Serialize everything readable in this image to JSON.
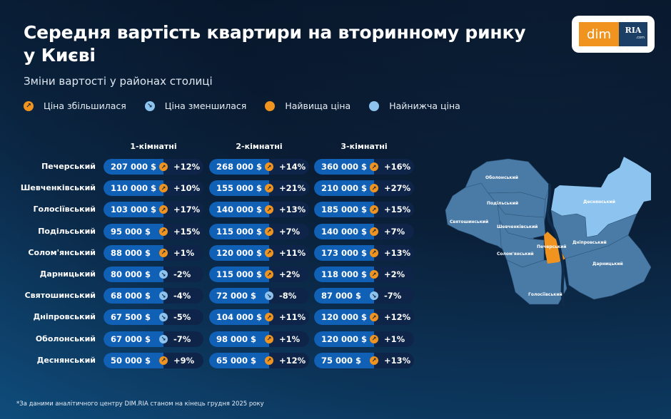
{
  "header": {
    "title": "Середня вартість квартири на вторинному ринку у Києві",
    "subtitle": "Зміни вартості у районах столиці"
  },
  "logo": {
    "left": "dim",
    "right": "RIA",
    "domain": ".com"
  },
  "legend": [
    {
      "label": "Ціна збільшилася",
      "icon": "arrow-up-right-icon",
      "color": "#f0941f"
    },
    {
      "label": "Ціна зменшилася",
      "icon": "arrow-down-right-icon",
      "color": "#8cc4ef"
    },
    {
      "label": "Найвища ціна",
      "icon": "dot-icon",
      "color": "#f0941f"
    },
    {
      "label": "Найнижча ціна",
      "icon": "dot-icon",
      "color": "#8cc4ef"
    }
  ],
  "colors": {
    "up": "#f0941f",
    "down": "#8cc4ef",
    "price_bg": "#1060b5",
    "change_bg": "#0e2448"
  },
  "table": {
    "columns": [
      "1-кімнатні",
      "2-кімнатні",
      "3-кімнатні"
    ],
    "rows": [
      {
        "district": "Печерський",
        "cells": [
          {
            "price": "207 000 $",
            "change": "+12%",
            "dir": "up"
          },
          {
            "price": "268 000 $",
            "change": "+14%",
            "dir": "up"
          },
          {
            "price": "360 000 $",
            "change": "+16%",
            "dir": "up"
          }
        ]
      },
      {
        "district": "Шевченківський",
        "cells": [
          {
            "price": "110 000  $",
            "change": "+10%",
            "dir": "up"
          },
          {
            "price": "155 000 $",
            "change": "+21%",
            "dir": "up"
          },
          {
            "price": "210 000 $",
            "change": "+27%",
            "dir": "up"
          }
        ]
      },
      {
        "district": "Голосіївський",
        "cells": [
          {
            "price": "103 000 $",
            "change": "+17%",
            "dir": "up"
          },
          {
            "price": "140 000 $",
            "change": "+13%",
            "dir": "up"
          },
          {
            "price": "185 000 $",
            "change": "+15%",
            "dir": "up"
          }
        ]
      },
      {
        "district": "Подільський",
        "cells": [
          {
            "price": "95 000  $",
            "change": "+15%",
            "dir": "up"
          },
          {
            "price": "115 000  $",
            "change": "+7%",
            "dir": "up"
          },
          {
            "price": "140 000 $",
            "change": "+7%",
            "dir": "up"
          }
        ]
      },
      {
        "district": "Солом'янський",
        "cells": [
          {
            "price": "88 000  $",
            "change": "+1%",
            "dir": "up"
          },
          {
            "price": "120 000 $",
            "change": "+11%",
            "dir": "up"
          },
          {
            "price": "173 000 $",
            "change": "+13%",
            "dir": "up"
          }
        ]
      },
      {
        "district": "Дарницький",
        "cells": [
          {
            "price": "80 000  $",
            "change": "-2%",
            "dir": "down"
          },
          {
            "price": "115 000  $",
            "change": "+2%",
            "dir": "up"
          },
          {
            "price": "118 000  $",
            "change": "+2%",
            "dir": "up"
          }
        ]
      },
      {
        "district": "Святошинський",
        "cells": [
          {
            "price": "68 000  $",
            "change": "-4%",
            "dir": "down"
          },
          {
            "price": "72 000  $",
            "change": "-8%",
            "dir": "down"
          },
          {
            "price": "87 000  $",
            "change": "-7%",
            "dir": "down"
          }
        ]
      },
      {
        "district": "Дніпровський",
        "cells": [
          {
            "price": "67 500  $",
            "change": "-5%",
            "dir": "down"
          },
          {
            "price": "104 000 $",
            "change": "+11%",
            "dir": "up"
          },
          {
            "price": "120 000 $",
            "change": "+12%",
            "dir": "up"
          }
        ]
      },
      {
        "district": "Оболонський",
        "cells": [
          {
            "price": "67 000  $",
            "change": "-7%",
            "dir": "down"
          },
          {
            "price": "98 000  $",
            "change": "+1%",
            "dir": "up"
          },
          {
            "price": "120 000 $",
            "change": "+1%",
            "dir": "up"
          }
        ]
      },
      {
        "district": "Деснянський",
        "cells": [
          {
            "price": "50 000  $",
            "change": "+9%",
            "dir": "up"
          },
          {
            "price": "65 000  $",
            "change": "+12%",
            "dir": "up"
          },
          {
            "price": "75 000  $",
            "change": "+13%",
            "dir": "up"
          }
        ]
      }
    ]
  },
  "map": {
    "districts": [
      {
        "name": "Оболонський",
        "status": "normal"
      },
      {
        "name": "Подільський",
        "status": "normal"
      },
      {
        "name": "Святошинський",
        "status": "normal"
      },
      {
        "name": "Шевченківський",
        "status": "normal"
      },
      {
        "name": "Солом'янський",
        "status": "normal"
      },
      {
        "name": "Печерський",
        "status": "highest"
      },
      {
        "name": "Деснянський",
        "status": "lowest"
      },
      {
        "name": "Дніпровський",
        "status": "normal"
      },
      {
        "name": "Дарницький",
        "status": "normal"
      },
      {
        "name": "Голосіївський",
        "status": "normal"
      }
    ],
    "colors": {
      "normal": "#4a7aa6",
      "highest": "#f0941f",
      "lowest": "#8cc4ef",
      "river": "#0e2c4a"
    }
  },
  "footnote": "*За даними аналітичного центру DIM.RIA станом на кінець грудня 2025 року"
}
